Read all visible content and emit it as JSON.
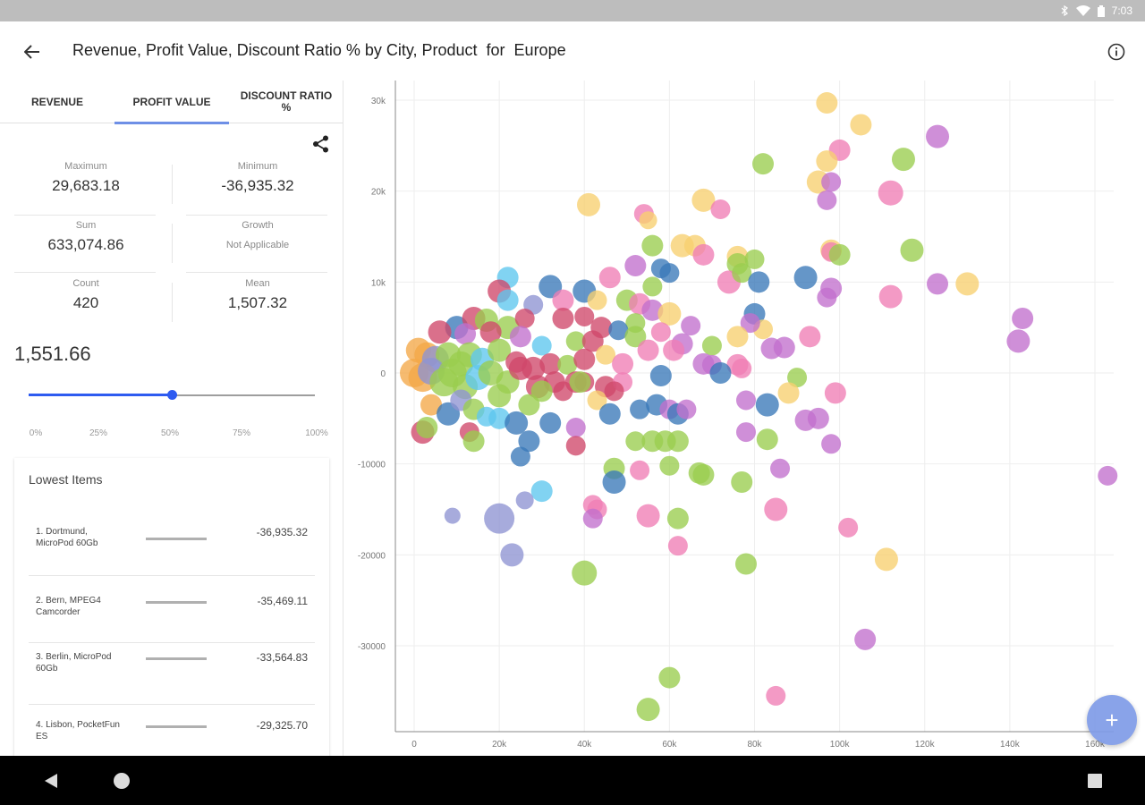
{
  "status": {
    "time": "7:03"
  },
  "header": {
    "title": "Revenue, Profit Value, Discount Ratio % by City, Product  for  Europe"
  },
  "tabs": [
    {
      "label": "REVENUE",
      "active": false
    },
    {
      "label": "PROFIT VALUE",
      "active": true
    },
    {
      "label": "DISCOUNT RATIO %",
      "active": false
    }
  ],
  "stats": {
    "maximum": {
      "label": "Maximum",
      "value": "29,683.18"
    },
    "minimum": {
      "label": "Minimum",
      "value": "-36,935.32"
    },
    "sum": {
      "label": "Sum",
      "value": "633,074.86"
    },
    "growth": {
      "label": "Growth",
      "value": "Not Applicable"
    },
    "count": {
      "label": "Count",
      "value": "420"
    },
    "mean": {
      "label": "Mean",
      "value": "1,507.32"
    }
  },
  "percentile": {
    "value": "1,551.66",
    "slider_fraction": 0.5,
    "ticks": [
      "0%",
      "25%",
      "50%",
      "75%",
      "100%"
    ]
  },
  "lowest": {
    "title": "Lowest Items",
    "items": [
      {
        "rank": "1.",
        "name": "Dortmund, MicroPod 60Gb",
        "value": "-36,935.32"
      },
      {
        "rank": "2.",
        "name": "Bern, MPEG4 Camcorder",
        "value": "-35,469.11"
      },
      {
        "rank": "3.",
        "name": "Berlin, MicroPod 60Gb",
        "value": "-33,564.83"
      },
      {
        "rank": "4.",
        "name": "Lisbon, PocketFun ES",
        "value": "-29,325.70"
      }
    ]
  },
  "colors": {
    "accent": "#2e5bf0",
    "tab_indicator": "#6e8fe6",
    "fab": "#7f9ce8",
    "palette": [
      "#f7d070",
      "#f07db5",
      "#c26fcd",
      "#9acd4e",
      "#3a78b8",
      "#5ec7ee",
      "#d0486a",
      "#8e94d2",
      "#f4a848"
    ]
  },
  "icons": {
    "back": "arrow-left-icon",
    "info": "info-icon",
    "share": "share-icon",
    "fab": "plus-icon",
    "nav_back": "triangle-back-icon",
    "nav_home": "circle-home-icon",
    "nav_recents": "square-recents-icon"
  },
  "fab_label": "+",
  "chart_data": {
    "type": "scatter",
    "bubble": true,
    "title": "",
    "xlabel": "",
    "ylabel": "",
    "xlim": [
      -5000,
      160000
    ],
    "ylim": [
      -39000,
      32000
    ],
    "x_ticks": [
      "0",
      "20k",
      "40k",
      "60k",
      "80k",
      "100k",
      "120k",
      "140k",
      "160k"
    ],
    "y_ticks": [
      "30k",
      "20k",
      "10k",
      "0",
      "-10000",
      "-20000",
      "-30000"
    ],
    "grid": true,
    "points": [
      [
        97000,
        29700,
        12,
        0
      ],
      [
        100000,
        24500,
        12,
        1
      ],
      [
        105000,
        27300,
        12,
        0
      ],
      [
        123000,
        26000,
        13,
        2
      ],
      [
        82000,
        23000,
        12,
        3
      ],
      [
        115000,
        23500,
        13,
        3
      ],
      [
        97000,
        23300,
        12,
        0
      ],
      [
        95000,
        21000,
        13,
        0
      ],
      [
        98000,
        21000,
        11,
        2
      ],
      [
        112000,
        19800,
        14,
        1
      ],
      [
        97000,
        19000,
        11,
        2
      ],
      [
        41000,
        18500,
        13,
        0
      ],
      [
        54000,
        17500,
        11,
        1
      ],
      [
        68000,
        19000,
        13,
        0
      ],
      [
        72000,
        18000,
        11,
        1
      ],
      [
        55000,
        16800,
        10,
        0
      ],
      [
        56000,
        14000,
        12,
        3
      ],
      [
        63000,
        14000,
        13,
        0
      ],
      [
        66000,
        14000,
        12,
        0
      ],
      [
        68000,
        13000,
        12,
        1
      ],
      [
        76000,
        12800,
        12,
        0
      ],
      [
        80000,
        12500,
        11,
        3
      ],
      [
        98000,
        13500,
        12,
        0
      ],
      [
        98000,
        13300,
        11,
        1
      ],
      [
        100000,
        13000,
        12,
        3
      ],
      [
        117000,
        13500,
        13,
        3
      ],
      [
        76000,
        12000,
        12,
        3
      ],
      [
        60000,
        11000,
        11,
        4
      ],
      [
        58000,
        11500,
        11,
        4
      ],
      [
        22000,
        10500,
        12,
        5
      ],
      [
        32000,
        9500,
        13,
        4
      ],
      [
        40000,
        9000,
        13,
        4
      ],
      [
        46000,
        10500,
        12,
        1
      ],
      [
        52000,
        11800,
        12,
        2
      ],
      [
        43000,
        8000,
        11,
        0
      ],
      [
        56000,
        9500,
        11,
        3
      ],
      [
        74000,
        10000,
        13,
        1
      ],
      [
        77000,
        11000,
        11,
        3
      ],
      [
        81000,
        10000,
        12,
        4
      ],
      [
        92000,
        10500,
        13,
        4
      ],
      [
        98000,
        9300,
        12,
        2
      ],
      [
        97000,
        8300,
        11,
        2
      ],
      [
        123000,
        9800,
        12,
        2
      ],
      [
        130000,
        9800,
        13,
        0
      ],
      [
        112000,
        8400,
        13,
        1
      ],
      [
        20000,
        9000,
        13,
        6
      ],
      [
        22000,
        8000,
        12,
        5
      ],
      [
        28000,
        7500,
        11,
        7
      ],
      [
        35000,
        8000,
        12,
        1
      ],
      [
        50000,
        8000,
        12,
        3
      ],
      [
        53000,
        7600,
        12,
        1
      ],
      [
        56000,
        6900,
        12,
        2
      ],
      [
        60000,
        6500,
        13,
        0
      ],
      [
        52000,
        5500,
        11,
        3
      ],
      [
        65000,
        5200,
        11,
        2
      ],
      [
        80000,
        6500,
        12,
        4
      ],
      [
        82000,
        4800,
        11,
        0
      ],
      [
        79000,
        5500,
        11,
        2
      ],
      [
        58000,
        4500,
        11,
        1
      ],
      [
        44000,
        5000,
        12,
        6
      ],
      [
        48000,
        4700,
        11,
        4
      ],
      [
        35000,
        6000,
        12,
        6
      ],
      [
        40000,
        6200,
        11,
        6
      ],
      [
        10000,
        5000,
        13,
        4
      ],
      [
        14000,
        6000,
        13,
        6
      ],
      [
        17000,
        5800,
        13,
        3
      ],
      [
        22000,
        5000,
        13,
        3
      ],
      [
        26000,
        6000,
        11,
        6
      ],
      [
        6000,
        4500,
        13,
        6
      ],
      [
        12000,
        4300,
        12,
        2
      ],
      [
        18000,
        4500,
        12,
        6
      ],
      [
        25000,
        4000,
        12,
        2
      ],
      [
        30000,
        3000,
        11,
        5
      ],
      [
        38000,
        3500,
        11,
        3
      ],
      [
        42000,
        3500,
        12,
        6
      ],
      [
        52000,
        4000,
        12,
        3
      ],
      [
        63000,
        3200,
        12,
        2
      ],
      [
        70000,
        3000,
        11,
        3
      ],
      [
        76000,
        4000,
        12,
        0
      ],
      [
        84000,
        2700,
        12,
        2
      ],
      [
        93000,
        4000,
        12,
        1
      ],
      [
        1000,
        2500,
        14,
        8
      ],
      [
        3000,
        2000,
        14,
        8
      ],
      [
        5000,
        1500,
        15,
        7
      ],
      [
        8000,
        2000,
        14,
        3
      ],
      [
        11000,
        1000,
        14,
        3
      ],
      [
        13000,
        2000,
        14,
        3
      ],
      [
        16000,
        1500,
        13,
        5
      ],
      [
        20000,
        2500,
        13,
        3
      ],
      [
        24000,
        1200,
        12,
        6
      ],
      [
        28000,
        500,
        13,
        6
      ],
      [
        32000,
        1000,
        12,
        6
      ],
      [
        36000,
        900,
        11,
        3
      ],
      [
        40000,
        1500,
        12,
        6
      ],
      [
        45000,
        2000,
        11,
        0
      ],
      [
        49000,
        1000,
        12,
        1
      ],
      [
        55000,
        2500,
        12,
        1
      ],
      [
        61000,
        2500,
        12,
        1
      ],
      [
        68000,
        1000,
        12,
        2
      ],
      [
        70000,
        900,
        11,
        2
      ],
      [
        76000,
        900,
        12,
        1
      ],
      [
        87000,
        2800,
        12,
        2
      ],
      [
        0,
        0,
        16,
        8
      ],
      [
        2000,
        -500,
        16,
        8
      ],
      [
        4000,
        200,
        15,
        7
      ],
      [
        7000,
        -1000,
        16,
        3
      ],
      [
        9000,
        0,
        16,
        3
      ],
      [
        12000,
        -1500,
        14,
        3
      ],
      [
        15000,
        -500,
        14,
        5
      ],
      [
        18000,
        0,
        14,
        3
      ],
      [
        22000,
        -1000,
        13,
        3
      ],
      [
        25000,
        500,
        13,
        6
      ],
      [
        29000,
        -1500,
        13,
        6
      ],
      [
        33000,
        -1000,
        12,
        6
      ],
      [
        38000,
        -1000,
        12,
        6
      ],
      [
        40000,
        -1000,
        11,
        6
      ],
      [
        45000,
        -1500,
        12,
        6
      ],
      [
        49000,
        -1000,
        11,
        1
      ],
      [
        58000,
        -300,
        12,
        4
      ],
      [
        72000,
        0,
        12,
        4
      ],
      [
        77000,
        500,
        11,
        1
      ],
      [
        90000,
        -500,
        11,
        3
      ],
      [
        99000,
        -2200,
        12,
        1
      ],
      [
        4000,
        -3500,
        12,
        8
      ],
      [
        8000,
        -4500,
        13,
        4
      ],
      [
        11000,
        -3000,
        12,
        7
      ],
      [
        14000,
        -4000,
        12,
        3
      ],
      [
        17000,
        -4800,
        11,
        5
      ],
      [
        20000,
        -2500,
        13,
        3
      ],
      [
        27000,
        -3500,
        12,
        3
      ],
      [
        30000,
        -2000,
        12,
        3
      ],
      [
        35000,
        -2000,
        11,
        6
      ],
      [
        39000,
        -1000,
        12,
        3
      ],
      [
        43000,
        -3000,
        11,
        0
      ],
      [
        47000,
        -2000,
        11,
        6
      ],
      [
        53000,
        -4000,
        11,
        4
      ],
      [
        57000,
        -3500,
        12,
        4
      ],
      [
        60000,
        -4000,
        11,
        2
      ],
      [
        62000,
        -4500,
        12,
        4
      ],
      [
        64000,
        -4000,
        11,
        2
      ],
      [
        78000,
        -3000,
        11,
        2
      ],
      [
        83000,
        -3500,
        13,
        4
      ],
      [
        88000,
        -2200,
        12,
        0
      ],
      [
        95000,
        -5000,
        12,
        2
      ],
      [
        2000,
        -6500,
        13,
        6
      ],
      [
        3000,
        -6000,
        12,
        3
      ],
      [
        13000,
        -6500,
        11,
        6
      ],
      [
        14000,
        -7500,
        12,
        3
      ],
      [
        20000,
        -5000,
        12,
        5
      ],
      [
        24000,
        -5500,
        13,
        4
      ],
      [
        27000,
        -7500,
        12,
        4
      ],
      [
        32000,
        -5500,
        12,
        4
      ],
      [
        38000,
        -6000,
        11,
        2
      ],
      [
        38000,
        -8000,
        11,
        6
      ],
      [
        46000,
        -4500,
        12,
        4
      ],
      [
        52000,
        -7500,
        11,
        3
      ],
      [
        56000,
        -7500,
        12,
        3
      ],
      [
        59000,
        -7500,
        12,
        3
      ],
      [
        62000,
        -7500,
        12,
        3
      ],
      [
        78000,
        -6500,
        11,
        2
      ],
      [
        83000,
        -7300,
        12,
        3
      ],
      [
        92000,
        -5200,
        12,
        2
      ],
      [
        98000,
        -7800,
        11,
        2
      ],
      [
        25000,
        -9200,
        11,
        4
      ],
      [
        47000,
        -10500,
        12,
        3
      ],
      [
        53000,
        -10700,
        11,
        1
      ],
      [
        60000,
        -10200,
        11,
        3
      ],
      [
        67000,
        -11000,
        12,
        3
      ],
      [
        68000,
        -11200,
        12,
        3
      ],
      [
        77000,
        -12000,
        12,
        3
      ],
      [
        86000,
        -10500,
        11,
        2
      ],
      [
        47000,
        -12000,
        13,
        4
      ],
      [
        163000,
        -11300,
        11,
        2
      ],
      [
        30000,
        -13000,
        12,
        5
      ],
      [
        26000,
        -14000,
        10,
        7
      ],
      [
        9000,
        -15700,
        9,
        7
      ],
      [
        20000,
        -16000,
        17,
        7
      ],
      [
        42000,
        -14500,
        11,
        1
      ],
      [
        43000,
        -15000,
        11,
        1
      ],
      [
        42000,
        -16000,
        11,
        2
      ],
      [
        55000,
        -15700,
        13,
        1
      ],
      [
        62000,
        -16000,
        12,
        3
      ],
      [
        85000,
        -15000,
        13,
        1
      ],
      [
        102000,
        -17000,
        11,
        1
      ],
      [
        23000,
        -20000,
        13,
        7
      ],
      [
        40000,
        -22000,
        14,
        3
      ],
      [
        62000,
        -19000,
        11,
        1
      ],
      [
        78000,
        -21000,
        12,
        3
      ],
      [
        111000,
        -20500,
        13,
        0
      ],
      [
        106000,
        -29300,
        12,
        2
      ],
      [
        60000,
        -33500,
        12,
        3
      ],
      [
        55000,
        -37000,
        13,
        3
      ],
      [
        85000,
        -35500,
        11,
        1
      ],
      [
        143000,
        6000,
        12,
        2
      ],
      [
        142000,
        3500,
        13,
        2
      ]
    ]
  }
}
